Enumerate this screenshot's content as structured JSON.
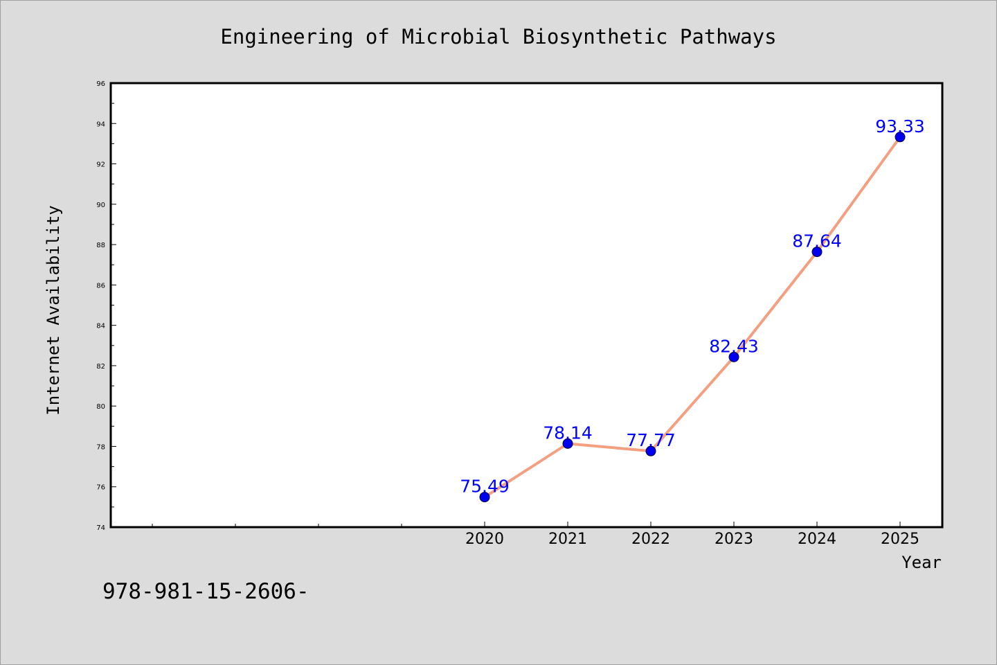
{
  "chart_data": {
    "type": "line",
    "title": "Engineering of Microbial Biosynthetic Pathways",
    "xlabel": "Year",
    "ylabel": "Internet Availability",
    "x": [
      "2020",
      "2021",
      "2022",
      "2023",
      "2024",
      "2025"
    ],
    "series": [
      {
        "values": [
          75.49,
          78.14,
          77.77,
          82.43,
          87.64,
          93.33
        ],
        "data_labels": [
          "75.49",
          "78.14",
          "77.77",
          "82.43",
          "87.64",
          "93.33"
        ]
      }
    ],
    "ylim": [
      74,
      96
    ],
    "y_ticks": [
      "74",
      "76",
      "78",
      "80",
      "82",
      "84",
      "86",
      "88",
      "90",
      "92",
      "94",
      "96"
    ],
    "grid": false,
    "legend": "none",
    "colors": {
      "line": "#f4a080",
      "marker": "#0000ee",
      "data_label": "#0000ff",
      "background": "#dcdcdc",
      "plot_background": "#ffffff"
    }
  },
  "footer": {
    "text": "978-981-15-2606-"
  }
}
